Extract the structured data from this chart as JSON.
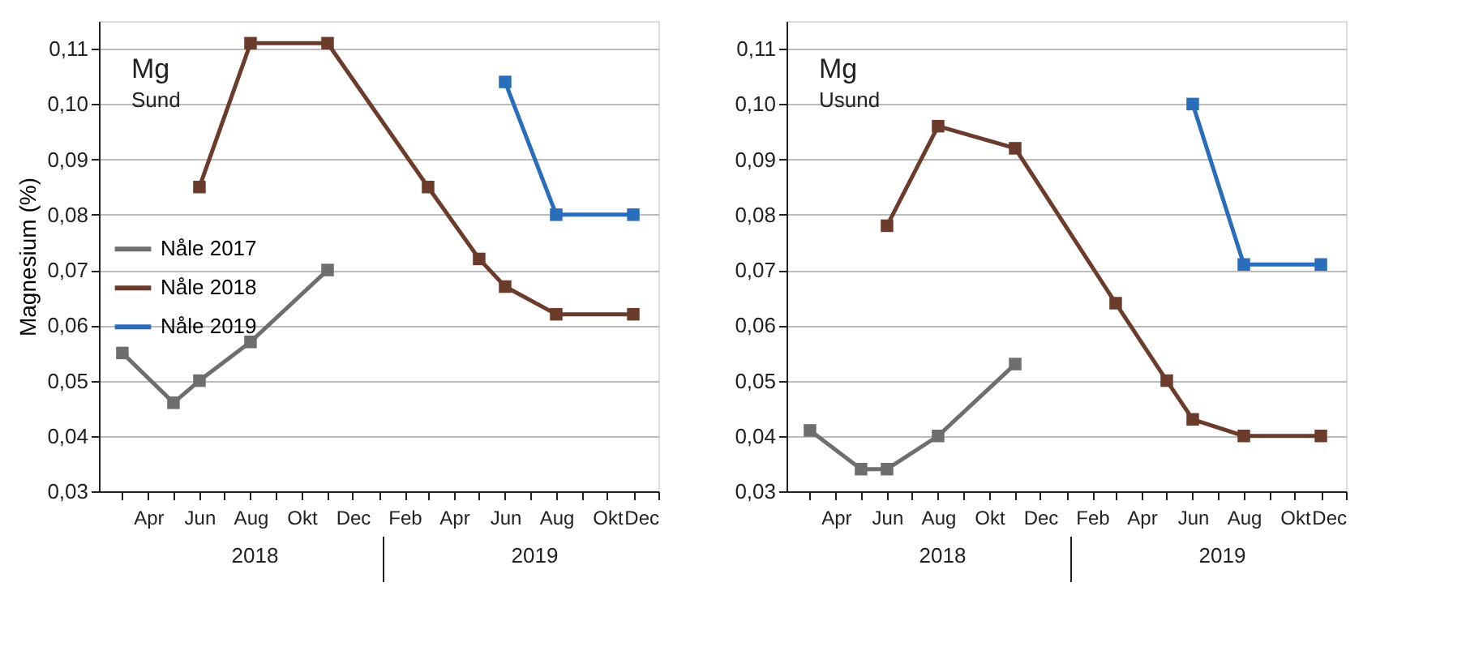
{
  "chart_data": [
    {
      "type": "line",
      "title": "Mg",
      "subtitle": "Sund",
      "ylabel": "Magnesium (%)",
      "xlim": [
        "2018-02",
        "2019-12"
      ],
      "xticks": [
        {
          "value": "2018-03",
          "label": null
        },
        {
          "value": "2018-04",
          "label": "Apr"
        },
        {
          "value": "2018-05",
          "label": null
        },
        {
          "value": "2018-06",
          "label": "Jun"
        },
        {
          "value": "2018-07",
          "label": null
        },
        {
          "value": "2018-08",
          "label": "Aug"
        },
        {
          "value": "2018-09",
          "label": null
        },
        {
          "value": "2018-10",
          "label": "Okt"
        },
        {
          "value": "2018-11",
          "label": null
        },
        {
          "value": "2018-12",
          "label": "Dec"
        },
        {
          "value": "2019-01",
          "label": null
        },
        {
          "value": "2019-02",
          "label": "Feb"
        },
        {
          "value": "2019-03",
          "label": null
        },
        {
          "value": "2019-04",
          "label": "Apr"
        },
        {
          "value": "2019-05",
          "label": null
        },
        {
          "value": "2019-06",
          "label": "Jun"
        },
        {
          "value": "2019-07",
          "label": null
        },
        {
          "value": "2019-08",
          "label": "Aug"
        },
        {
          "value": "2019-09",
          "label": null
        },
        {
          "value": "2019-10",
          "label": "Okt"
        },
        {
          "value": "2019-11",
          "label": null
        },
        {
          "value": "2019-12",
          "label": "Dec"
        }
      ],
      "ylim": [
        0.03,
        0.115
      ],
      "yticks": [
        {
          "value": 0.03,
          "label": "0,03"
        },
        {
          "value": 0.04,
          "label": "0,04"
        },
        {
          "value": 0.05,
          "label": "0,05"
        },
        {
          "value": 0.06,
          "label": "0,06"
        },
        {
          "value": 0.07,
          "label": "0,07"
        },
        {
          "value": 0.08,
          "label": "0,08"
        },
        {
          "value": 0.09,
          "label": "0,09"
        },
        {
          "value": 0.1,
          "label": "0,10"
        },
        {
          "value": 0.11,
          "label": "0,11"
        }
      ],
      "grid": "y",
      "legend": "left",
      "marker": "square",
      "line_style": "solid",
      "annotations": [
        "2018",
        "2019"
      ],
      "series": [
        {
          "name": "Nåle 2017",
          "color": "#6e6e6e",
          "x": [
            "2018-03",
            "2018-05",
            "2018-06",
            "2018-08",
            "2018-11"
          ],
          "values": [
            0.055,
            0.046,
            0.05,
            0.057,
            0.07
          ]
        },
        {
          "name": "Nåle 2018",
          "color": "#6b3b2b",
          "x": [
            "2018-06",
            "2018-08",
            "2018-11",
            "2019-03",
            "2019-05",
            "2019-06",
            "2019-08",
            "2019-11"
          ],
          "values": [
            0.085,
            0.111,
            0.111,
            0.085,
            0.072,
            0.067,
            0.062,
            0.062
          ]
        },
        {
          "name": "Nåle 2019",
          "color": "#2a6ebb",
          "x": [
            "2019-06",
            "2019-08",
            "2019-11"
          ],
          "values": [
            0.104,
            0.08,
            0.08
          ]
        }
      ]
    },
    {
      "type": "line",
      "title": "Mg",
      "subtitle": "Usund",
      "xlim": [
        "2018-02",
        "2019-12"
      ],
      "xticks": [
        {
          "value": "2018-03",
          "label": null
        },
        {
          "value": "2018-04",
          "label": "Apr"
        },
        {
          "value": "2018-05",
          "label": null
        },
        {
          "value": "2018-06",
          "label": "Jun"
        },
        {
          "value": "2018-07",
          "label": null
        },
        {
          "value": "2018-08",
          "label": "Aug"
        },
        {
          "value": "2018-09",
          "label": null
        },
        {
          "value": "2018-10",
          "label": "Okt"
        },
        {
          "value": "2018-11",
          "label": null
        },
        {
          "value": "2018-12",
          "label": "Dec"
        },
        {
          "value": "2019-01",
          "label": null
        },
        {
          "value": "2019-02",
          "label": "Feb"
        },
        {
          "value": "2019-03",
          "label": null
        },
        {
          "value": "2019-04",
          "label": "Apr"
        },
        {
          "value": "2019-05",
          "label": null
        },
        {
          "value": "2019-06",
          "label": "Jun"
        },
        {
          "value": "2019-07",
          "label": null
        },
        {
          "value": "2019-08",
          "label": "Aug"
        },
        {
          "value": "2019-09",
          "label": null
        },
        {
          "value": "2019-10",
          "label": "Okt"
        },
        {
          "value": "2019-11",
          "label": null
        },
        {
          "value": "2019-12",
          "label": "Dec"
        }
      ],
      "ylim": [
        0.03,
        0.115
      ],
      "yticks": [
        {
          "value": 0.03,
          "label": "0,03"
        },
        {
          "value": 0.04,
          "label": "0,04"
        },
        {
          "value": 0.05,
          "label": "0,05"
        },
        {
          "value": 0.06,
          "label": "0,06"
        },
        {
          "value": 0.07,
          "label": "0,07"
        },
        {
          "value": 0.08,
          "label": "0,08"
        },
        {
          "value": 0.09,
          "label": "0,09"
        },
        {
          "value": 0.1,
          "label": "0,10"
        },
        {
          "value": 0.11,
          "label": "0,11"
        }
      ],
      "grid": "y",
      "legend": "left",
      "marker": "square",
      "line_style": "solid",
      "annotations": [
        "2018",
        "2019"
      ],
      "series": [
        {
          "name": "Nåle 2017",
          "color": "#6e6e6e",
          "x": [
            "2018-03",
            "2018-05",
            "2018-06",
            "2018-08",
            "2018-11"
          ],
          "values": [
            0.041,
            0.034,
            0.034,
            0.04,
            0.053
          ]
        },
        {
          "name": "Nåle 2018",
          "color": "#6b3b2b",
          "x": [
            "2018-06",
            "2018-08",
            "2018-11",
            "2019-03",
            "2019-05",
            "2019-06",
            "2019-08",
            "2019-11"
          ],
          "values": [
            0.078,
            0.096,
            0.092,
            0.064,
            0.05,
            0.043,
            0.04,
            0.04
          ]
        },
        {
          "name": "Nåle 2019",
          "color": "#2a6ebb",
          "x": [
            "2019-06",
            "2019-08",
            "2019-11"
          ],
          "values": [
            0.1,
            0.071,
            0.071
          ]
        }
      ]
    }
  ]
}
